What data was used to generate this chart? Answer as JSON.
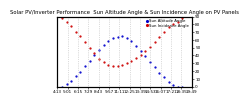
{
  "title": "Solar PV/Inverter Performance  Sun Altitude Angle & Sun Incidence Angle on PV Panels",
  "background_color": "#ffffff",
  "grid_color": "#bbbbbb",
  "blue_color": "#0000cc",
  "red_color": "#cc0000",
  "x_times": [
    5.5,
    6.0,
    6.5,
    7.0,
    7.5,
    8.0,
    8.5,
    9.0,
    9.5,
    10.0,
    10.5,
    11.0,
    11.5,
    12.0,
    12.5,
    13.0,
    13.5,
    14.0,
    14.5,
    15.0,
    15.5,
    16.0,
    16.5,
    17.0,
    17.5,
    18.0,
    18.5
  ],
  "blue_y": [
    0,
    3,
    7,
    13,
    19,
    26,
    33,
    40,
    47,
    53,
    58,
    62,
    64,
    65,
    62,
    58,
    52,
    46,
    39,
    32,
    25,
    18,
    12,
    6,
    2,
    0,
    0
  ],
  "red_y": [
    88,
    83,
    78,
    70,
    65,
    57,
    50,
    43,
    36,
    31,
    28,
    27,
    27,
    28,
    30,
    33,
    37,
    41,
    46,
    51,
    57,
    64,
    70,
    76,
    80,
    83,
    88
  ],
  "ylim": [
    0,
    90
  ],
  "xlim": [
    5.0,
    19.5
  ],
  "yticks_right": [
    0,
    10,
    20,
    30,
    40,
    50,
    60,
    70,
    80,
    90
  ],
  "xtick_labels": [
    "4:13",
    "5:01",
    "6:15",
    "7:29",
    "8:43",
    "9:57",
    "11:11",
    "12:25",
    "13:39",
    "14:53",
    "16:07",
    "17:21",
    "18:35",
    "19:49"
  ],
  "legend_blue": "Sun Altitude Angle",
  "legend_red": "Sun Incidence Angle",
  "title_fontsize": 3.8,
  "tick_fontsize": 3.0,
  "legend_fontsize": 2.8,
  "dot_size": 1.2
}
